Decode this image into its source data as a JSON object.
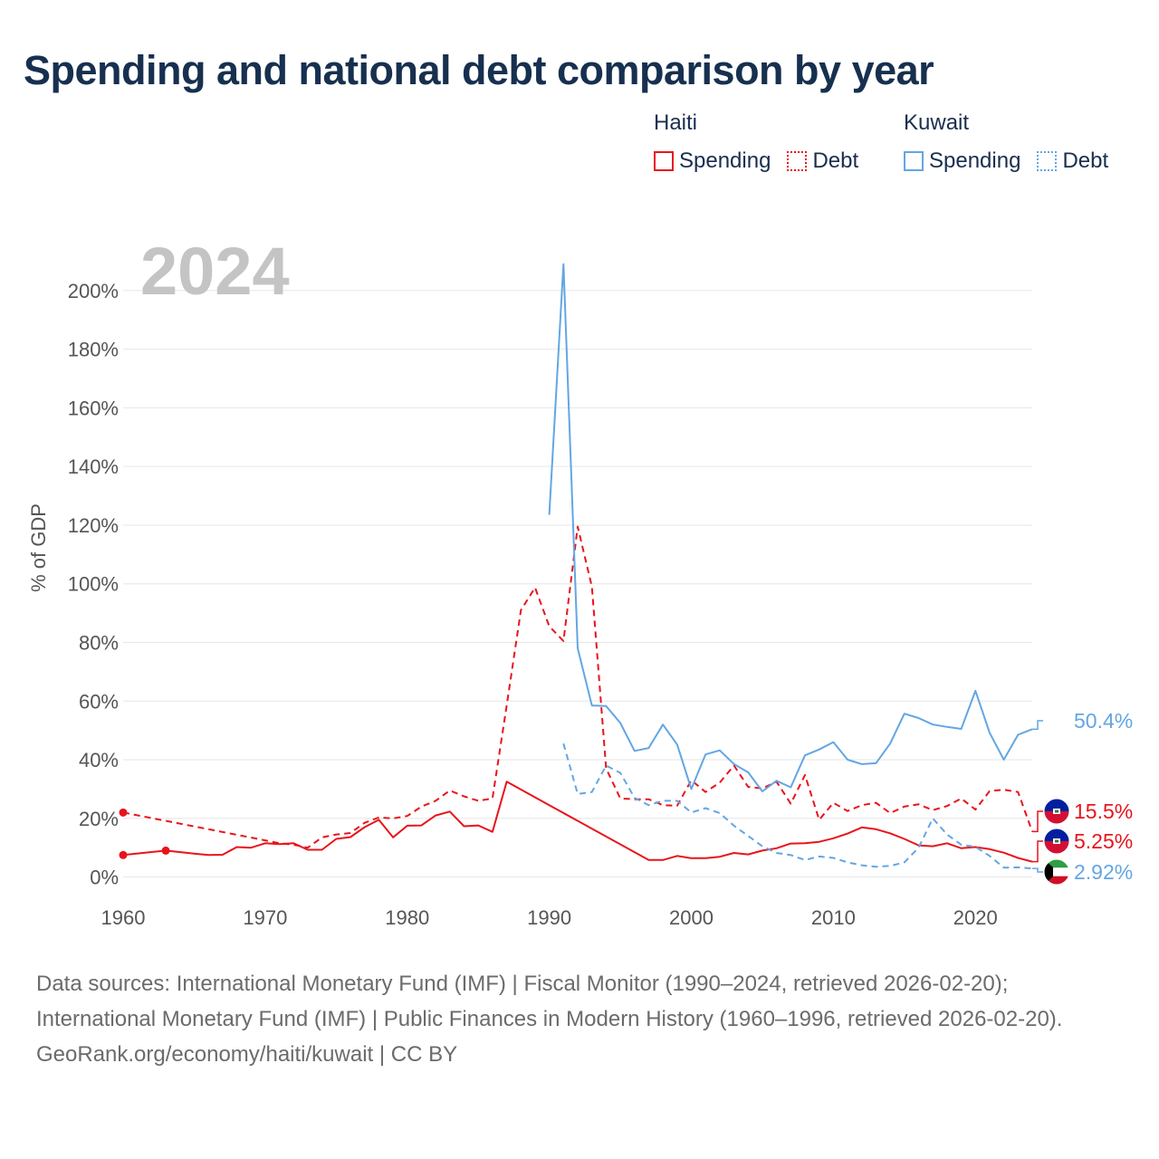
{
  "title": "Spending and national debt comparison by year",
  "legend": {
    "groups": [
      {
        "name": "Haiti",
        "color": "#e8141b",
        "spending_label": "Spending",
        "debt_label": "Debt"
      },
      {
        "name": "Kuwait",
        "color": "#63a6e3",
        "spending_label": "Spending",
        "debt_label": "Debt"
      }
    ]
  },
  "footer": {
    "sources": "Data sources: International Monetary Fund (IMF) | Fiscal Monitor (1990–2024, retrieved 2026-02-20); International Monetary Fund (IMF) | Public Finances in Modern History (1960–1996, retrieved 2026-02-20).",
    "credit": "GeoRank.org/economy/haiti/kuwait | CC BY"
  },
  "chart_data": {
    "type": "line",
    "title": "Spending and national debt comparison by year",
    "year_label": "2024",
    "ylabel": "% of GDP",
    "xlabel": "",
    "xlim": [
      1960,
      2024
    ],
    "ylim": [
      -6,
      212
    ],
    "x_ticks": [
      1960,
      1970,
      1980,
      1990,
      2000,
      2010,
      2020
    ],
    "y_ticks": [
      0,
      20,
      40,
      60,
      80,
      100,
      120,
      140,
      160,
      180,
      200
    ],
    "y_tick_labels": [
      "0%",
      "20%",
      "40%",
      "60%",
      "80%",
      "100%",
      "120%",
      "140%",
      "160%",
      "180%",
      "200%"
    ],
    "grid": "horizontal",
    "series": [
      {
        "name": "Haiti Spending",
        "country": "Haiti",
        "metric": "Spending",
        "color": "#e8141b",
        "dash": "solid",
        "segments": [
          [
            [
              1960,
              7.5
            ],
            [
              1963,
              9
            ],
            [
              1965,
              8
            ],
            [
              1966,
              7.5
            ],
            [
              1967,
              7.6
            ],
            [
              1968,
              10.2
            ],
            [
              1969,
              10
            ],
            [
              1970,
              11.5
            ],
            [
              1971,
              11.2
            ],
            [
              1972,
              11.5
            ],
            [
              1973,
              9.3
            ],
            [
              1974,
              9.3
            ],
            [
              1975,
              13
            ],
            [
              1976,
              13.6
            ],
            [
              1977,
              17
            ],
            [
              1978,
              19.5
            ],
            [
              1979,
              13.5
            ],
            [
              1980,
              17.5
            ],
            [
              1981,
              17.6
            ],
            [
              1982,
              21
            ],
            [
              1983,
              22.3
            ],
            [
              1984,
              17.3
            ],
            [
              1985,
              17.6
            ],
            [
              1986,
              15.4
            ],
            [
              1987,
              32.5
            ],
            [
              1997,
              5.8
            ],
            [
              1998,
              5.8
            ],
            [
              1999,
              7.2
            ],
            [
              2000,
              6.4
            ],
            [
              2001,
              6.4
            ],
            [
              2002,
              6.9
            ],
            [
              2003,
              8.2
            ],
            [
              2004,
              7.7
            ],
            [
              2005,
              9
            ],
            [
              2006,
              9.8
            ],
            [
              2007,
              11.4
            ],
            [
              2008,
              11.5
            ],
            [
              2009,
              12
            ],
            [
              2010,
              13.2
            ],
            [
              2011,
              14.8
            ],
            [
              2012,
              16.9
            ],
            [
              2013,
              16.3
            ],
            [
              2014,
              14.9
            ],
            [
              2015,
              13
            ],
            [
              2016,
              10.8
            ],
            [
              2017,
              10.5
            ],
            [
              2018,
              11.5
            ],
            [
              2019,
              9.8
            ],
            [
              2020,
              10.2
            ],
            [
              2021,
              9.5
            ],
            [
              2022,
              8.3
            ],
            [
              2023,
              6.5
            ],
            [
              2024,
              5.25
            ]
          ]
        ],
        "markers": [
          [
            1960,
            7.5
          ],
          [
            1963,
            9
          ]
        ]
      },
      {
        "name": "Haiti Debt",
        "country": "Haiti",
        "metric": "Debt",
        "color": "#e8141b",
        "dash": "dashed",
        "segments": [
          [
            [
              1960,
              22
            ],
            [
              1970,
              12.5
            ],
            [
              1971,
              11.5
            ],
            [
              1972,
              11
            ],
            [
              1973,
              10
            ],
            [
              1974,
              13.5
            ],
            [
              1975,
              14.5
            ],
            [
              1976,
              15
            ],
            [
              1977,
              18.5
            ],
            [
              1978,
              20.3
            ],
            [
              1979,
              20
            ],
            [
              1980,
              20.8
            ],
            [
              1981,
              24
            ],
            [
              1982,
              26
            ],
            [
              1983,
              29.5
            ],
            [
              1984,
              27.5
            ],
            [
              1985,
              26
            ],
            [
              1986,
              26.8
            ],
            [
              1987,
              58.5
            ],
            [
              1988,
              91
            ],
            [
              1989,
              98.7
            ],
            [
              1990,
              85.5
            ],
            [
              1991,
              80.5
            ],
            [
              1992,
              119.5
            ],
            [
              1993,
              99
            ],
            [
              1994,
              37
            ],
            [
              1995,
              26.8
            ],
            [
              1996,
              26.5
            ],
            [
              1997,
              26.5
            ],
            [
              1998,
              24.5
            ],
            [
              1999,
              24.3
            ],
            [
              2000,
              33
            ],
            [
              2001,
              29
            ],
            [
              2002,
              32.2
            ],
            [
              2003,
              38
            ],
            [
              2004,
              30.7
            ],
            [
              2005,
              30.2
            ],
            [
              2006,
              32.5
            ],
            [
              2007,
              25
            ],
            [
              2008,
              34.8
            ],
            [
              2009,
              19.5
            ],
            [
              2010,
              25.3
            ],
            [
              2011,
              22.5
            ],
            [
              2012,
              24.5
            ],
            [
              2013,
              25.3
            ],
            [
              2014,
              21.8
            ],
            [
              2015,
              24
            ],
            [
              2016,
              24.8
            ],
            [
              2017,
              22.8
            ],
            [
              2018,
              24.2
            ],
            [
              2019,
              26.8
            ],
            [
              2020,
              23
            ],
            [
              2021,
              29.3
            ],
            [
              2022,
              29.8
            ],
            [
              2023,
              29
            ],
            [
              2024,
              15.5
            ]
          ]
        ],
        "markers": [
          [
            1960,
            22
          ]
        ]
      },
      {
        "name": "Kuwait Spending",
        "country": "Kuwait",
        "metric": "Spending",
        "color": "#63a6e3",
        "dash": "solid",
        "segments": [
          [
            [
              1990,
              123.5
            ],
            [
              1991,
              209
            ],
            [
              1992,
              78
            ],
            [
              1993,
              58.5
            ],
            [
              1994,
              58.3
            ],
            [
              1995,
              52.5
            ],
            [
              1996,
              43
            ],
            [
              1997,
              44
            ],
            [
              1998,
              52
            ],
            [
              1999,
              45.2
            ],
            [
              2000,
              30
            ],
            [
              2001,
              41.8
            ],
            [
              2002,
              43.2
            ],
            [
              2003,
              38.5
            ],
            [
              2004,
              35.7
            ],
            [
              2005,
              29.2
            ],
            [
              2006,
              32.8
            ],
            [
              2007,
              30.6
            ],
            [
              2008,
              41.5
            ],
            [
              2009,
              43.5
            ],
            [
              2010,
              46
            ],
            [
              2011,
              40
            ],
            [
              2012,
              38.5
            ],
            [
              2013,
              38.8
            ],
            [
              2014,
              45.5
            ],
            [
              2015,
              55.7
            ],
            [
              2016,
              54.2
            ],
            [
              2017,
              52
            ],
            [
              2018,
              51.2
            ],
            [
              2019,
              50.5
            ],
            [
              2020,
              63.5
            ],
            [
              2021,
              49.2
            ],
            [
              2022,
              40
            ],
            [
              2023,
              48.5
            ],
            [
              2024,
              50.4
            ]
          ]
        ],
        "markers": []
      },
      {
        "name": "Kuwait Debt",
        "country": "Kuwait",
        "metric": "Debt",
        "color": "#63a6e3",
        "dash": "dashed",
        "segments": [
          [
            [
              1991,
              45.5
            ],
            [
              1992,
              28.3
            ],
            [
              1993,
              29
            ],
            [
              1994,
              38
            ],
            [
              1995,
              35.5
            ],
            [
              1996,
              27
            ],
            [
              1997,
              24.5
            ],
            [
              1998,
              26
            ],
            [
              1999,
              26
            ],
            [
              2000,
              22
            ],
            [
              2001,
              23.5
            ],
            [
              2002,
              21.8
            ],
            [
              2003,
              17.5
            ],
            [
              2004,
              14
            ],
            [
              2005,
              10.5
            ],
            [
              2006,
              8.2
            ],
            [
              2007,
              7.5
            ],
            [
              2008,
              5.8
            ],
            [
              2009,
              7
            ],
            [
              2010,
              6.5
            ],
            [
              2011,
              5
            ],
            [
              2012,
              4
            ],
            [
              2013,
              3.5
            ],
            [
              2014,
              3.8
            ],
            [
              2015,
              5
            ],
            [
              2016,
              10
            ],
            [
              2017,
              20
            ],
            [
              2018,
              14.5
            ],
            [
              2019,
              11
            ],
            [
              2020,
              10.3
            ],
            [
              2021,
              7.2
            ],
            [
              2022,
              3.2
            ],
            [
              2023,
              3.3
            ],
            [
              2024,
              2.92
            ]
          ]
        ],
        "markers": []
      }
    ],
    "end_labels": [
      {
        "series": "Kuwait Spending",
        "country": "Kuwait",
        "value": 50.4,
        "text": "50.4%",
        "color": "#63a6e3"
      },
      {
        "series": "Haiti Debt",
        "country": "Haiti",
        "value": 15.5,
        "text": "15.5%",
        "color": "#e8141b"
      },
      {
        "series": "Haiti Spending",
        "country": "Haiti",
        "value": 5.25,
        "text": "5.25%",
        "color": "#e8141b"
      },
      {
        "series": "Kuwait Debt",
        "country": "Kuwait",
        "value": 2.92,
        "text": "2.92%",
        "color": "#63a6e3"
      }
    ]
  }
}
